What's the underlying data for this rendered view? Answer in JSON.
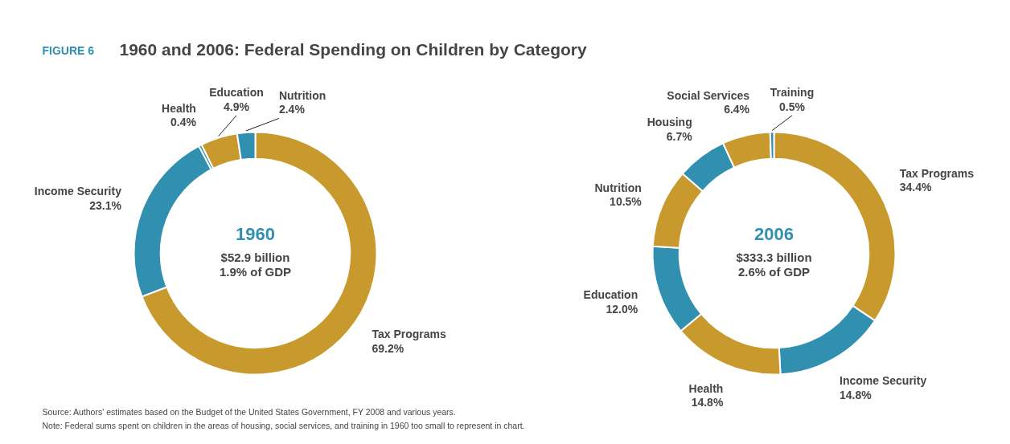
{
  "chart_data": [
    {
      "type": "donut",
      "title": "1960",
      "subtitle": "$52.9 billion\n1.9% of GDP",
      "annotations": [
        "FIGURE 6",
        "1960 and 2006: Federal Spending on Children by Category",
        "Source:  Authors' estimates based on the Budget of the United States Government, FY 2008 and various years.",
        "Note:  Federal sums spent on children in the areas of housing, social services, and training in 1960 too small to represent in chart."
      ],
      "categories": [
        "Tax Programs",
        "Income Security",
        "Health",
        "Education",
        "Nutrition"
      ],
      "values": [
        69.2,
        23.1,
        0.4,
        4.9,
        2.4
      ],
      "value_labels": [
        "69.2%",
        "23.1%",
        "0.4%",
        "4.9%",
        "2.4%"
      ],
      "colors": [
        "#c8992d",
        "#3190b0",
        "#3190b0",
        "#c8992d",
        "#3190b0"
      ],
      "data_labels": true,
      "legend": false
    },
    {
      "type": "donut",
      "title": "2006",
      "subtitle": "$333.3 billion\n2.6% of GDP",
      "categories": [
        "Tax Programs",
        "Income Security",
        "Health",
        "Education",
        "Nutrition",
        "Housing",
        "Social Services",
        "Training"
      ],
      "values": [
        34.4,
        14.8,
        14.8,
        12.0,
        10.5,
        6.7,
        6.4,
        0.5
      ],
      "value_labels": [
        "34.4%",
        "14.8%",
        "14.8%",
        "12.0%",
        "10.5%",
        "6.7%",
        "6.4%",
        "0.5%"
      ],
      "colors": [
        "#c8992d",
        "#3190b0",
        "#c8992d",
        "#3190b0",
        "#c8992d",
        "#3190b0",
        "#c8992d",
        "#3190b0"
      ],
      "data_labels": true,
      "legend": false
    }
  ]
}
